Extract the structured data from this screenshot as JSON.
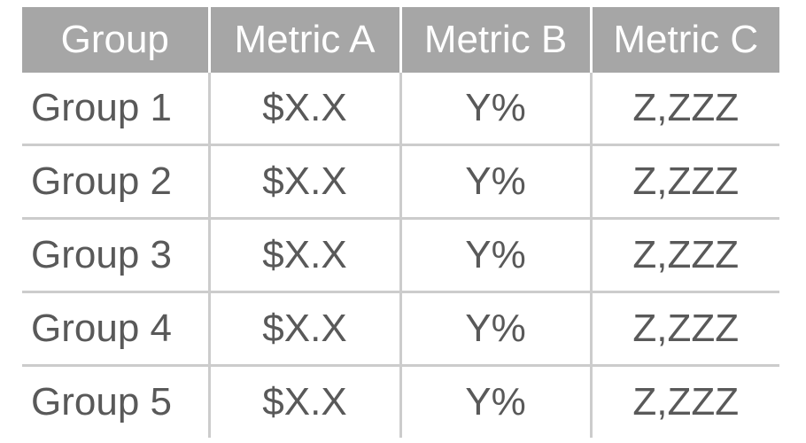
{
  "table": {
    "headers": [
      "Group",
      "Metric A",
      "Metric B",
      "Metric C"
    ],
    "rows": [
      [
        "Group 1",
        "$X.X",
        "Y%",
        "Z,ZZZ"
      ],
      [
        "Group 2",
        "$X.X",
        "Y%",
        "Z,ZZZ"
      ],
      [
        "Group 3",
        "$X.X",
        "Y%",
        "Z,ZZZ"
      ],
      [
        "Group 4",
        "$X.X",
        "Y%",
        "Z,ZZZ"
      ],
      [
        "Group 5",
        "$X.X",
        "Y%",
        "Z,ZZZ"
      ]
    ]
  },
  "colors": {
    "header_background": "#a6a6a6",
    "header_text": "#ffffff",
    "body_text": "#595959",
    "grid_lines": "#cccccc"
  }
}
